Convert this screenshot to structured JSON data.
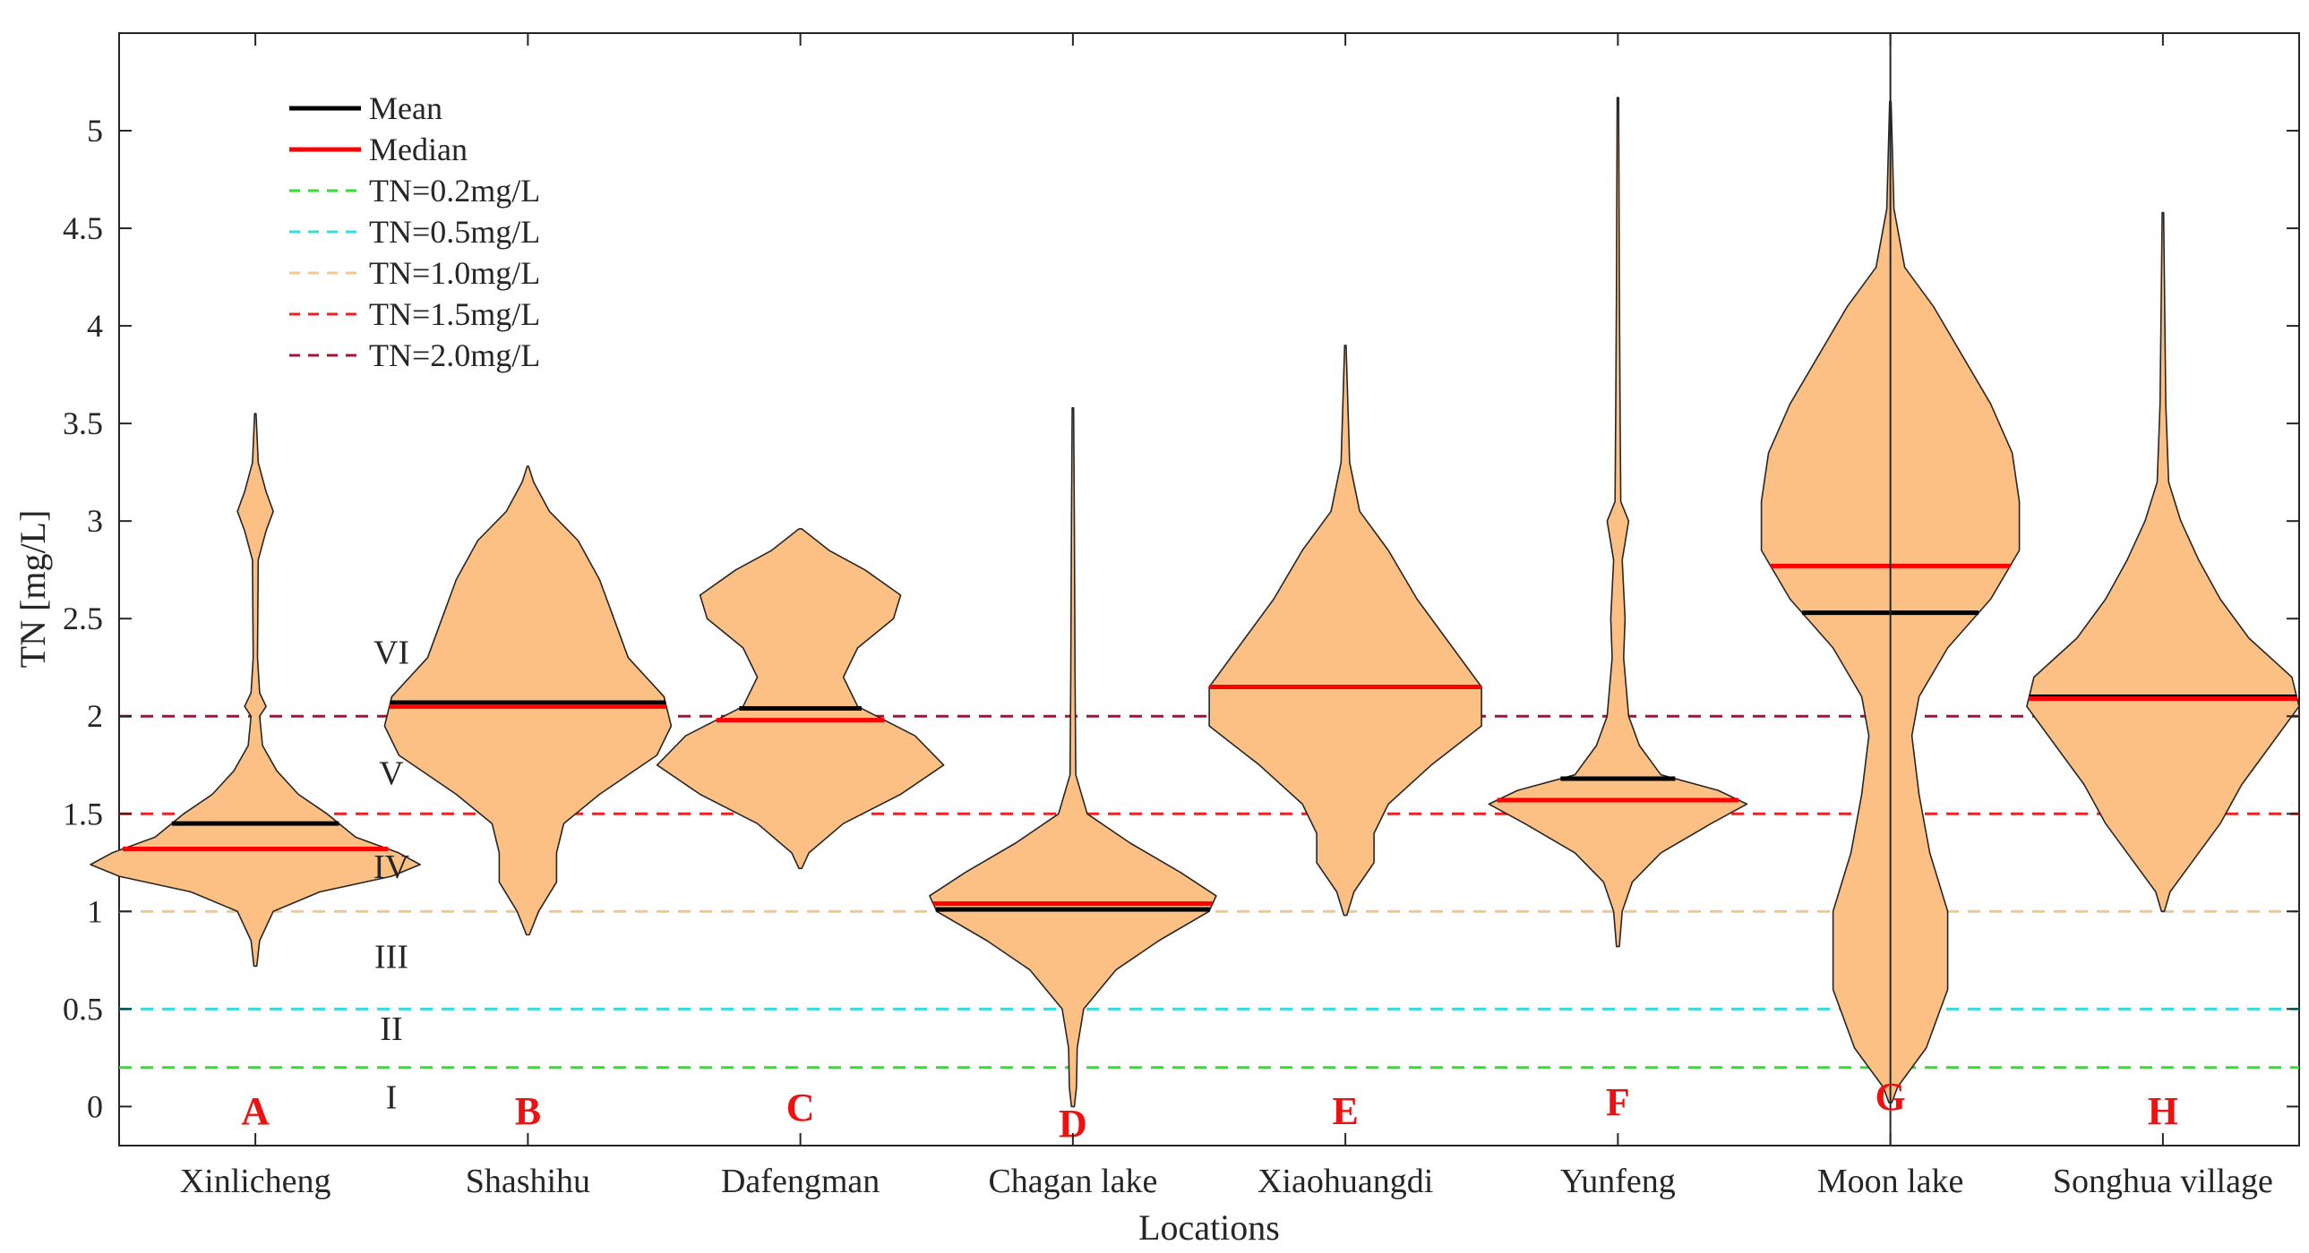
{
  "chart_data": {
    "type": "violin",
    "xlabel": "Locations",
    "ylabel": "TN [mg/L]",
    "ylim": [
      -0.2,
      5.5
    ],
    "yticks": [
      0,
      0.5,
      1,
      1.5,
      2,
      2.5,
      3,
      3.5,
      4,
      4.5,
      5
    ],
    "ytick_labels": [
      "0",
      "0.5",
      "1",
      "1.5",
      "2",
      "2.5",
      "3",
      "3.5",
      "4",
      "4.5",
      "5"
    ],
    "legend": {
      "placement": "top-left",
      "entries": [
        {
          "label": "Mean",
          "color": "#000000",
          "style": "solid"
        },
        {
          "label": "Median",
          "color": "#ff0000",
          "style": "solid"
        },
        {
          "label": "TN=0.2mg/L",
          "color": "#33dd33",
          "style": "dashed"
        },
        {
          "label": "TN=0.5mg/L",
          "color": "#33dddd",
          "style": "dashed"
        },
        {
          "label": "TN=1.0mg/L",
          "color": "#f0c890",
          "style": "dashed"
        },
        {
          "label": "TN=1.5mg/L",
          "color": "#ee2222",
          "style": "dashed"
        },
        {
          "label": "TN=2.0mg/L",
          "color": "#aa1133",
          "style": "dashed"
        }
      ]
    },
    "reference_lines": [
      {
        "y": 0.2,
        "color": "#33dd33"
      },
      {
        "y": 0.5,
        "color": "#33dddd"
      },
      {
        "y": 1.0,
        "color": "#f0c890"
      },
      {
        "y": 1.5,
        "color": "#ee2222"
      },
      {
        "y": 2.0,
        "color": "#aa1133"
      }
    ],
    "class_labels": [
      {
        "label": "I",
        "y": 0.05
      },
      {
        "label": "II",
        "y": 0.4
      },
      {
        "label": "III",
        "y": 0.77
      },
      {
        "label": "IV",
        "y": 1.23
      },
      {
        "label": "V",
        "y": 1.71
      },
      {
        "label": "VI",
        "y": 2.33
      }
    ],
    "violin_fill": "#fcc084",
    "series": [
      {
        "name": "Xinlicheng",
        "letter": "A",
        "mean": 1.45,
        "median": 1.32,
        "min": 0.72,
        "max": 3.55,
        "profile": [
          [
            0.72,
            0.002
          ],
          [
            0.85,
            0.006
          ],
          [
            1.0,
            0.025
          ],
          [
            1.1,
            0.09
          ],
          [
            1.18,
            0.19
          ],
          [
            1.24,
            0.23
          ],
          [
            1.3,
            0.2
          ],
          [
            1.38,
            0.14
          ],
          [
            1.5,
            0.1
          ],
          [
            1.6,
            0.06
          ],
          [
            1.72,
            0.03
          ],
          [
            1.85,
            0.01
          ],
          [
            2.0,
            0.006
          ],
          [
            2.05,
            0.015
          ],
          [
            2.12,
            0.006
          ],
          [
            2.3,
            0.003
          ],
          [
            2.8,
            0.004
          ],
          [
            2.95,
            0.015
          ],
          [
            3.05,
            0.025
          ],
          [
            3.15,
            0.015
          ],
          [
            3.3,
            0.004
          ],
          [
            3.55,
            0.001
          ]
        ]
      },
      {
        "name": "Shashihu",
        "letter": "B",
        "mean": 2.07,
        "median": 2.05,
        "min": 0.88,
        "max": 3.28,
        "profile": [
          [
            0.88,
            0.002
          ],
          [
            1.0,
            0.015
          ],
          [
            1.15,
            0.04
          ],
          [
            1.3,
            0.04
          ],
          [
            1.45,
            0.05
          ],
          [
            1.6,
            0.1
          ],
          [
            1.8,
            0.18
          ],
          [
            1.95,
            0.2
          ],
          [
            2.1,
            0.19
          ],
          [
            2.3,
            0.14
          ],
          [
            2.5,
            0.12
          ],
          [
            2.7,
            0.1
          ],
          [
            2.9,
            0.07
          ],
          [
            3.05,
            0.03
          ],
          [
            3.2,
            0.008
          ],
          [
            3.28,
            0.001
          ]
        ]
      },
      {
        "name": "Dafengman",
        "letter": "C",
        "mean": 2.04,
        "median": 1.98,
        "min": 1.22,
        "max": 2.96,
        "profile": [
          [
            1.22,
            0.002
          ],
          [
            1.3,
            0.012
          ],
          [
            1.45,
            0.06
          ],
          [
            1.6,
            0.14
          ],
          [
            1.75,
            0.2
          ],
          [
            1.9,
            0.16
          ],
          [
            2.05,
            0.08
          ],
          [
            2.2,
            0.06
          ],
          [
            2.35,
            0.08
          ],
          [
            2.5,
            0.13
          ],
          [
            2.62,
            0.14
          ],
          [
            2.75,
            0.09
          ],
          [
            2.85,
            0.04
          ],
          [
            2.96,
            0.002
          ]
        ]
      },
      {
        "name": "Chagan lake",
        "letter": "D",
        "mean": 1.01,
        "median": 1.04,
        "min": 0.0,
        "max": 3.58,
        "profile": [
          [
            0.0,
            0.002
          ],
          [
            0.1,
            0.005
          ],
          [
            0.3,
            0.006
          ],
          [
            0.5,
            0.015
          ],
          [
            0.7,
            0.06
          ],
          [
            0.85,
            0.12
          ],
          [
            1.0,
            0.19
          ],
          [
            1.08,
            0.2
          ],
          [
            1.2,
            0.15
          ],
          [
            1.35,
            0.08
          ],
          [
            1.5,
            0.02
          ],
          [
            1.7,
            0.004
          ],
          [
            2.2,
            0.003
          ],
          [
            3.0,
            0.002
          ],
          [
            3.58,
            0.001
          ]
        ]
      },
      {
        "name": "Xiaohuangdi",
        "letter": "E",
        "mean": 2.15,
        "median": 2.15,
        "min": 0.98,
        "max": 3.9,
        "profile": [
          [
            0.98,
            0.002
          ],
          [
            1.1,
            0.012
          ],
          [
            1.25,
            0.04
          ],
          [
            1.4,
            0.04
          ],
          [
            1.55,
            0.06
          ],
          [
            1.75,
            0.12
          ],
          [
            1.95,
            0.19
          ],
          [
            2.15,
            0.19
          ],
          [
            2.35,
            0.15
          ],
          [
            2.6,
            0.1
          ],
          [
            2.85,
            0.06
          ],
          [
            3.05,
            0.02
          ],
          [
            3.3,
            0.006
          ],
          [
            3.9,
            0.001
          ]
        ]
      },
      {
        "name": "Yunfeng",
        "letter": "F",
        "mean": 1.68,
        "median": 1.57,
        "min": 0.82,
        "max": 5.17,
        "profile": [
          [
            0.82,
            0.002
          ],
          [
            1.0,
            0.006
          ],
          [
            1.15,
            0.02
          ],
          [
            1.3,
            0.06
          ],
          [
            1.45,
            0.13
          ],
          [
            1.55,
            0.18
          ],
          [
            1.62,
            0.14
          ],
          [
            1.7,
            0.06
          ],
          [
            1.85,
            0.03
          ],
          [
            2.0,
            0.015
          ],
          [
            2.3,
            0.008
          ],
          [
            2.5,
            0.01
          ],
          [
            2.8,
            0.006
          ],
          [
            3.0,
            0.015
          ],
          [
            3.1,
            0.004
          ],
          [
            3.6,
            0.003
          ],
          [
            4.2,
            0.002
          ],
          [
            5.17,
            0.001
          ]
        ]
      },
      {
        "name": "Moon lake",
        "letter": "G",
        "mean": 2.53,
        "median": 2.77,
        "min": 0.02,
        "max": 5.15,
        "profile": [
          [
            0.02,
            0.002
          ],
          [
            0.1,
            0.01
          ],
          [
            0.3,
            0.05
          ],
          [
            0.6,
            0.08
          ],
          [
            1.0,
            0.08
          ],
          [
            1.3,
            0.055
          ],
          [
            1.6,
            0.04
          ],
          [
            1.9,
            0.03
          ],
          [
            2.1,
            0.04
          ],
          [
            2.35,
            0.08
          ],
          [
            2.6,
            0.14
          ],
          [
            2.85,
            0.18
          ],
          [
            3.1,
            0.18
          ],
          [
            3.35,
            0.17
          ],
          [
            3.6,
            0.14
          ],
          [
            3.85,
            0.1
          ],
          [
            4.1,
            0.06
          ],
          [
            4.3,
            0.02
          ],
          [
            4.6,
            0.005
          ],
          [
            5.15,
            0.001
          ]
        ]
      },
      {
        "name": "Songhua village",
        "letter": "H",
        "mean": 2.1,
        "median": 2.09,
        "min": 1.0,
        "max": 4.58,
        "profile": [
          [
            1.0,
            0.002
          ],
          [
            1.1,
            0.01
          ],
          [
            1.25,
            0.04
          ],
          [
            1.45,
            0.08
          ],
          [
            1.65,
            0.11
          ],
          [
            1.85,
            0.15
          ],
          [
            2.05,
            0.19
          ],
          [
            2.2,
            0.18
          ],
          [
            2.4,
            0.12
          ],
          [
            2.6,
            0.08
          ],
          [
            2.8,
            0.05
          ],
          [
            3.0,
            0.025
          ],
          [
            3.2,
            0.008
          ],
          [
            3.6,
            0.004
          ],
          [
            4.58,
            0.001
          ]
        ]
      }
    ],
    "extra_vertical_line_at": "Moon lake"
  }
}
